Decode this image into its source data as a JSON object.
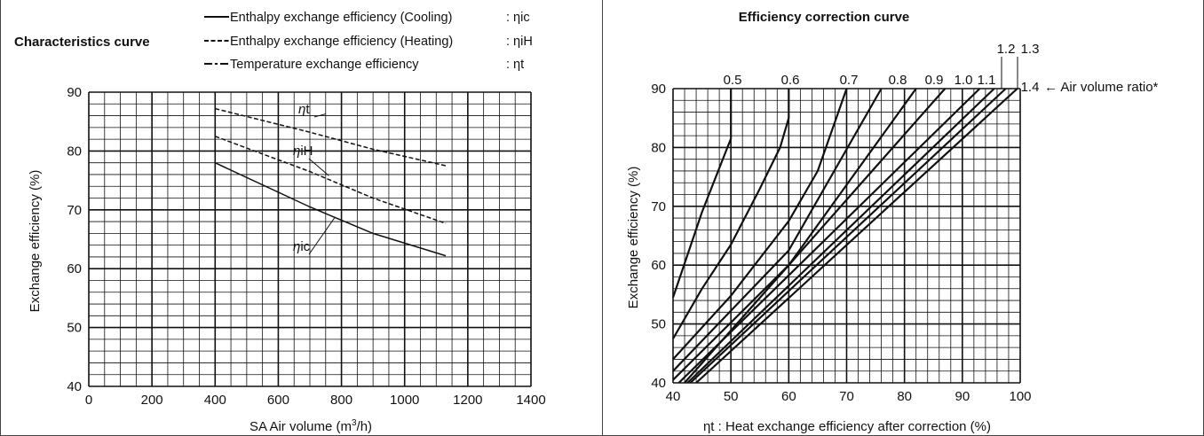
{
  "chart_data": [
    {
      "type": "line",
      "title": "Characteristics curve",
      "xlabel": "SA Air volume (m",
      "xlabel_sup": "3",
      "xlabel_tail": "/h)",
      "ylabel": "Exchange efficiency (%)",
      "xlim": [
        0,
        1400
      ],
      "ylim": [
        40,
        90
      ],
      "x_ticks": [
        "0",
        "200",
        "400",
        "600",
        "800",
        "1000",
        "1200",
        "1400"
      ],
      "y_ticks": [
        "40",
        "50",
        "60",
        "70",
        "80",
        "90"
      ],
      "grid": true,
      "legend": [
        {
          "style": "solid",
          "label": "Enthalpy exchange efficiency (Cooling)",
          "symbol": ": ηic"
        },
        {
          "style": "dashed",
          "label": "Enthalpy exchange efficiency (Heating)",
          "symbol": ": ηiH"
        },
        {
          "style": "dashdot",
          "label": "Temperature exchange efficiency",
          "symbol": ": ηt"
        }
      ],
      "series": [
        {
          "name": "ηt",
          "label_parts": [
            "η",
            "t"
          ],
          "style": "dashed",
          "x": [
            400,
            700,
            900,
            1130
          ],
          "y": [
            87.2,
            83.2,
            80.3,
            77.5
          ]
        },
        {
          "name": "ηiH",
          "label_parts": [
            "η",
            "iH"
          ],
          "style": "dashed",
          "x": [
            400,
            700,
            900,
            1130
          ],
          "y": [
            82.5,
            76.5,
            72.0,
            67.7
          ]
        },
        {
          "name": "ηic",
          "label_parts": [
            "η",
            "ic"
          ],
          "style": "solid",
          "x": [
            400,
            700,
            900,
            1130
          ],
          "y": [
            78.0,
            70.5,
            66.0,
            62.2
          ]
        }
      ]
    },
    {
      "type": "line",
      "title": "Efficiency correction curve",
      "xlabel": "ηt : Heat exchange efficiency after correction (%)",
      "ylabel": "Exchange efficiency (%)",
      "xlim": [
        40,
        100
      ],
      "ylim": [
        40,
        90
      ],
      "x_ticks": [
        "40",
        "50",
        "60",
        "70",
        "80",
        "90",
        "100"
      ],
      "y_ticks": [
        "40",
        "50",
        "60",
        "70",
        "80",
        "90"
      ],
      "grid": true,
      "air_volume_label": "← Air volume ratio*",
      "curves": [
        {
          "ratio": "0.5",
          "x": [
            40,
            45,
            50,
            50,
            50
          ],
          "y": [
            54.5,
            69,
            81.5,
            86,
            90
          ]
        },
        {
          "ratio": "0.6",
          "x": [
            40,
            45,
            50,
            55,
            58.5,
            60,
            60
          ],
          "y": [
            47.5,
            56,
            63.5,
            73,
            80,
            85,
            90
          ]
        },
        {
          "ratio": "0.7",
          "x": [
            40,
            50,
            60,
            65,
            70
          ],
          "y": [
            44,
            54.8,
            67.5,
            76,
            90
          ]
        },
        {
          "ratio": "0.8",
          "x": [
            40,
            60,
            76
          ],
          "y": [
            42,
            62.5,
            90
          ]
        },
        {
          "ratio": "0.9",
          "x": [
            40,
            60,
            82
          ],
          "y": [
            40.5,
            60,
            90
          ]
        },
        {
          "ratio": "1.0",
          "x": [
            42,
            87
          ],
          "y": [
            40,
            90
          ]
        },
        {
          "ratio": "1.1",
          "x": [
            41,
            93
          ],
          "y": [
            40,
            90
          ]
        },
        {
          "ratio": "1.2",
          "x": [
            42.5,
            95.5
          ],
          "y": [
            40,
            90
          ]
        },
        {
          "ratio": "1.3",
          "x": [
            43,
            97.5
          ],
          "y": [
            40,
            90
          ]
        },
        {
          "ratio": "1.4",
          "x": [
            44,
            99.5
          ],
          "y": [
            40,
            90
          ]
        }
      ]
    }
  ]
}
